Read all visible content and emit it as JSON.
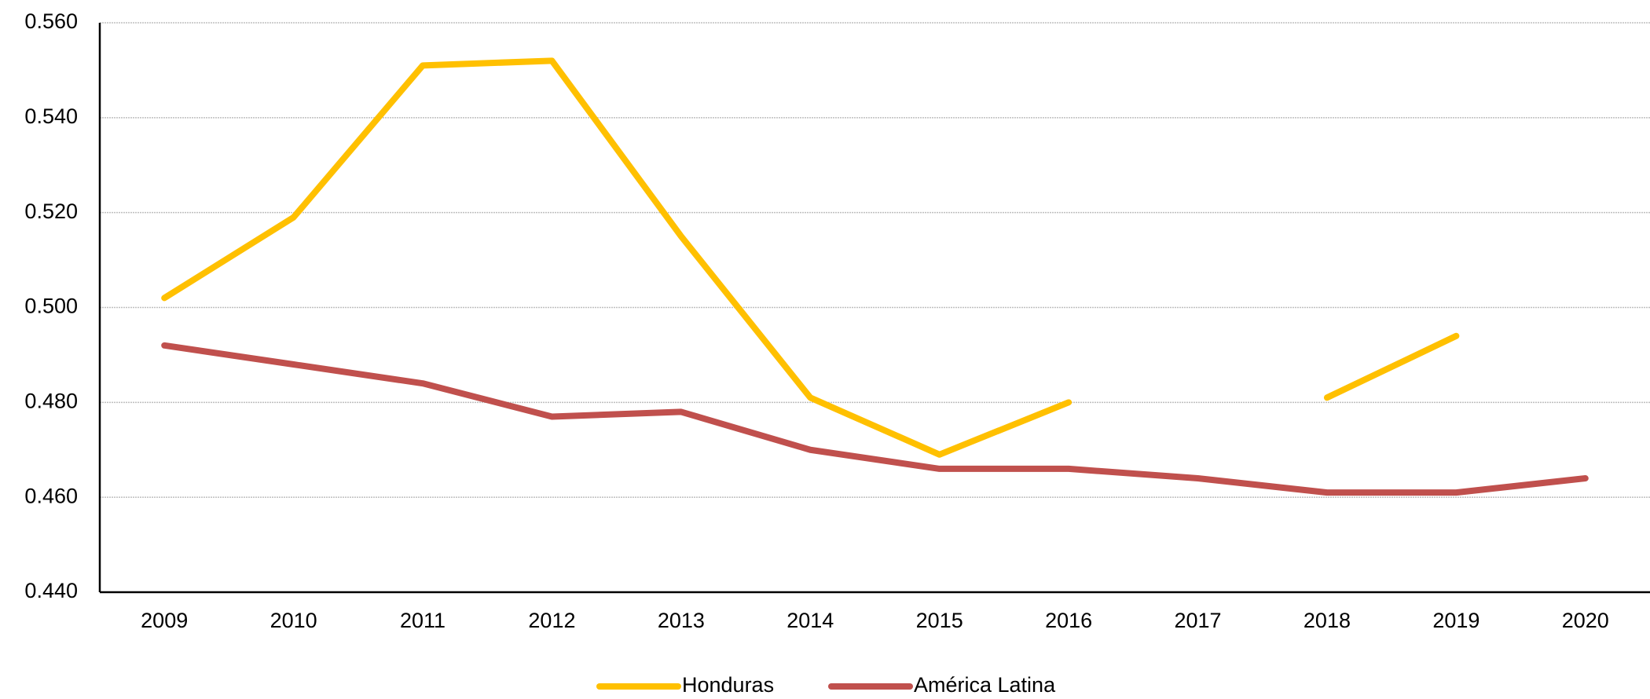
{
  "chart_data": {
    "type": "line",
    "categories": [
      "2009",
      "2010",
      "2011",
      "2012",
      "2013",
      "2014",
      "2015",
      "2016",
      "2017",
      "2018",
      "2019",
      "2020"
    ],
    "series": [
      {
        "name": "Honduras",
        "color": "#ffc000",
        "values": [
          0.502,
          0.519,
          0.551,
          0.552,
          0.515,
          0.481,
          0.469,
          0.48,
          null,
          0.481,
          0.494,
          null
        ]
      },
      {
        "name": "América Latina",
        "color": "#c0504d",
        "values": [
          0.492,
          0.488,
          0.484,
          0.477,
          0.478,
          0.47,
          0.466,
          0.466,
          0.464,
          0.461,
          0.461,
          0.464
        ]
      }
    ],
    "ylim": [
      0.44,
      0.56
    ],
    "yticks": [
      {
        "value": 0.44,
        "label": "0.440"
      },
      {
        "value": 0.46,
        "label": "0.460"
      },
      {
        "value": 0.48,
        "label": "0.480"
      },
      {
        "value": 0.5,
        "label": "0.500"
      },
      {
        "value": 0.52,
        "label": "0.520"
      },
      {
        "value": 0.54,
        "label": "0.540"
      },
      {
        "value": 0.56,
        "label": "0.560"
      }
    ],
    "grid": true,
    "legend": "bottom"
  }
}
